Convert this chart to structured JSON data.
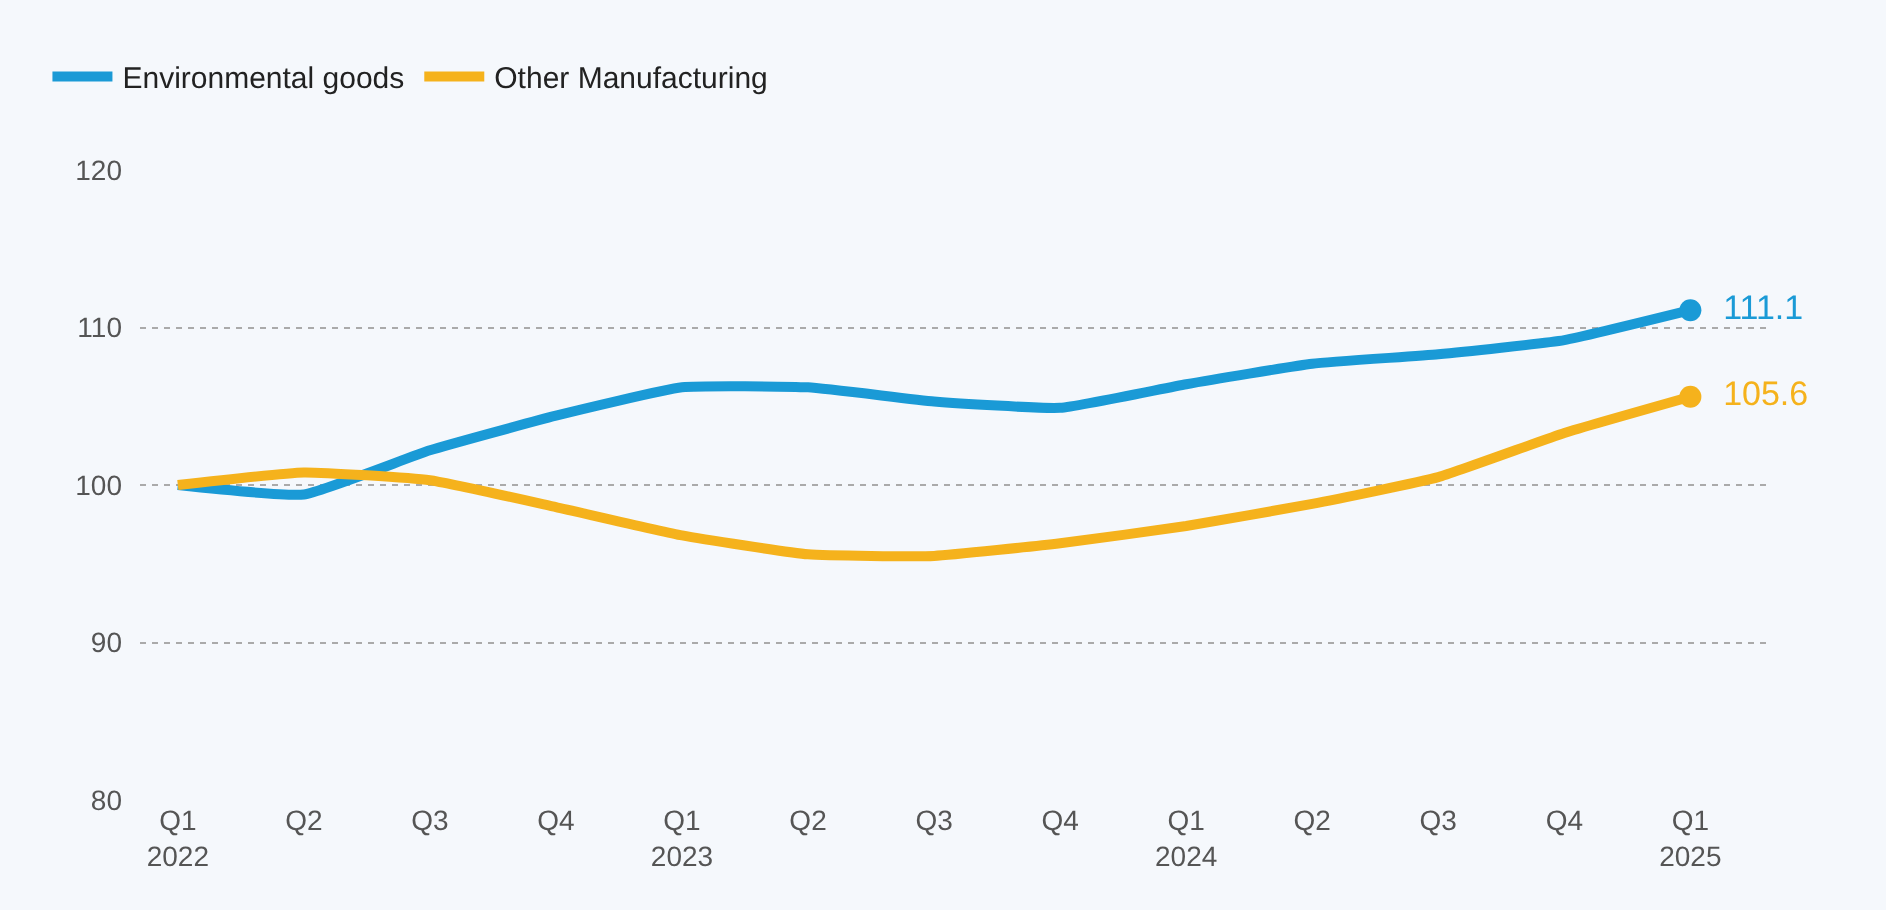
{
  "chart_data": {
    "type": "line",
    "categories": [
      "Q1\n2022",
      "Q2",
      "Q3",
      "Q4",
      "Q1\n2023",
      "Q2",
      "Q3",
      "Q4",
      "Q1\n2024",
      "Q2",
      "Q3",
      "Q4",
      "Q1\n2025"
    ],
    "series": [
      {
        "name": "Environmental goods",
        "color": "#1a9ad6",
        "values": [
          100,
          99.4,
          102.2,
          104.4,
          106.2,
          106.2,
          105.3,
          104.9,
          106.4,
          107.7,
          108.3,
          109.2,
          111.1
        ],
        "value_labels": [
          null,
          null,
          null,
          null,
          null,
          null,
          null,
          null,
          null,
          null,
          null,
          null,
          "111.1"
        ]
      },
      {
        "name": "Other Manufacturing",
        "color": "#f5b21c",
        "values": [
          100,
          100.8,
          100.3,
          98.6,
          96.8,
          95.6,
          95.5,
          96.3,
          97.4,
          98.8,
          100.5,
          103.3,
          105.6
        ],
        "value_labels": [
          null,
          null,
          null,
          null,
          null,
          null,
          null,
          null,
          null,
          null,
          null,
          null,
          "105.6"
        ]
      }
    ],
    "ylim": [
      80,
      120
    ],
    "yticks": [
      80,
      90,
      100,
      110,
      120
    ],
    "grid": "y",
    "legend": "top left",
    "line_style": "solid"
  }
}
